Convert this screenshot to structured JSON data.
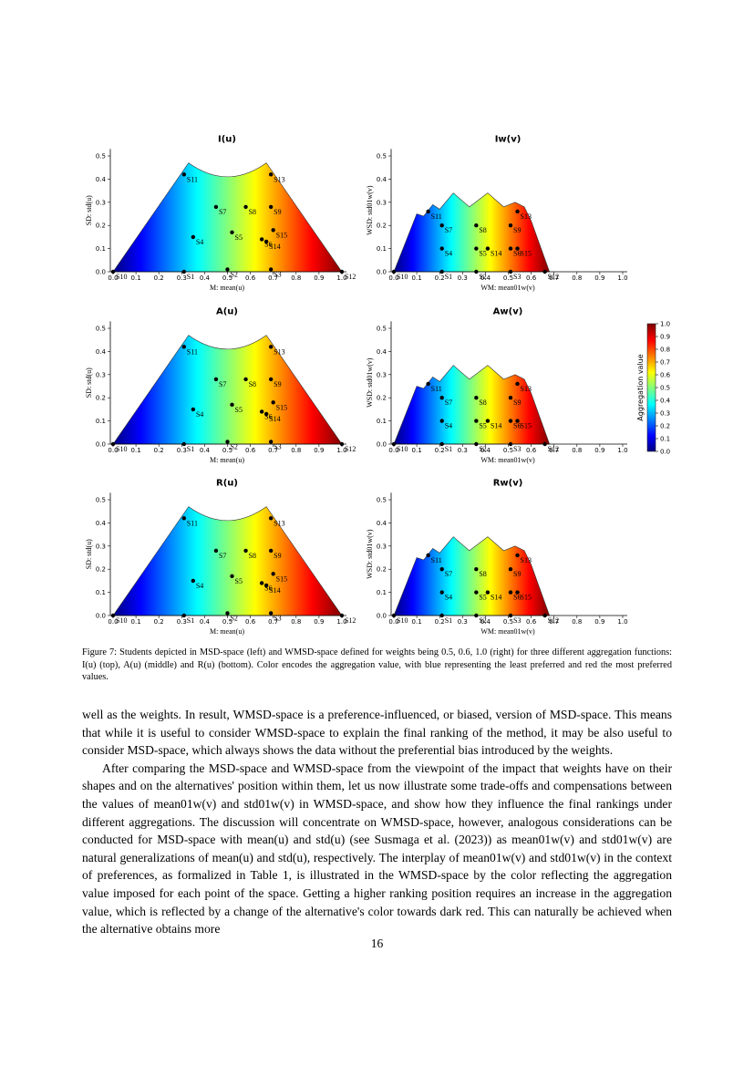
{
  "figure": {
    "rows": [
      {
        "titles": [
          "I(u)",
          "Iw(v)"
        ]
      },
      {
        "titles": [
          "A(u)",
          "Aw(v)"
        ]
      },
      {
        "titles": [
          "R(u)",
          "Rw(v)"
        ]
      }
    ],
    "columns": [
      {
        "xlabel": "M: mean(u)",
        "ylabel": "SD: std(u)",
        "xlim": [
          0,
          1.02
        ],
        "ylim": [
          0,
          0.53
        ],
        "xticks": [
          {
            "value": 0,
            "label": "0.0"
          },
          0.1,
          0.2,
          0.3,
          0.4,
          0.5,
          0.6,
          0.7,
          0.8,
          0.9,
          {
            "value": 1,
            "label": "1.0"
          }
        ],
        "yticks": [
          {
            "value": 0,
            "label": "0.0"
          },
          0.1,
          0.2,
          0.3,
          0.4,
          0.5
        ],
        "points": {
          "labels": [
            "S1",
            "S2",
            "S3",
            "S4",
            "S5",
            "S6",
            "S7",
            "S8",
            "S9",
            "S10",
            "S11",
            "S12",
            "S13",
            "S14",
            "S15"
          ],
          "x": [
            0.31,
            0.5,
            0.69,
            0.35,
            0.52,
            0.65,
            0.45,
            0.58,
            0.69,
            0.0,
            0.31,
            1.0,
            0.69,
            0.67,
            0.7
          ],
          "y": [
            0.0,
            0.01,
            0.01,
            0.15,
            0.17,
            0.14,
            0.28,
            0.28,
            0.28,
            0.0,
            0.42,
            0.0,
            0.42,
            0.13,
            0.18
          ]
        }
      },
      {
        "xlabel": "WM: mean01w(v)",
        "ylabel": "WSD: std01w(v)",
        "xlim": [
          0,
          1.02
        ],
        "ylim": [
          0,
          0.53
        ],
        "xticks": [
          {
            "value": 0,
            "label": "0.0"
          },
          0.1,
          0.2,
          0.3,
          0.4,
          0.5,
          0.6,
          0.7,
          0.8,
          0.9,
          {
            "value": 1,
            "label": "1.0"
          }
        ],
        "yticks": [
          {
            "value": 0,
            "label": "0.0"
          },
          0.1,
          0.2,
          0.3,
          0.4,
          0.5
        ],
        "points": {
          "labels": [
            "S1",
            "S2",
            "S3",
            "S4",
            "S5",
            "S6",
            "S7",
            "S8",
            "S9",
            "S10",
            "S11",
            "S12",
            "S13",
            "S14",
            "S15"
          ],
          "x": [
            0.21,
            0.36,
            0.51,
            0.21,
            0.36,
            0.51,
            0.21,
            0.36,
            0.51,
            0.0,
            0.15,
            0.66,
            0.54,
            0.41,
            0.54
          ],
          "y": [
            0.0,
            0.0,
            0.0,
            0.1,
            0.1,
            0.1,
            0.2,
            0.2,
            0.2,
            0.0,
            0.26,
            0.0,
            0.26,
            0.1,
            0.1
          ]
        }
      }
    ],
    "colorbar": {
      "label": "Aggregation value",
      "lim": [
        0,
        1
      ],
      "ticks": [
        {
          "value": 0,
          "label": "0.0"
        },
        0.1,
        0.2,
        0.3,
        0.4,
        0.5,
        0.6,
        0.7,
        0.8,
        0.9,
        {
          "value": 1,
          "label": "1.0"
        }
      ]
    },
    "caption": "Figure 7: Students depicted in MSD-space (left) and WMSD-space defined for weights being 0.5, 0.6, 1.0 (right) for three different aggregation functions: I(u) (top), A(u) (middle) and R(u) (bottom). Color encodes the aggregation value, with blue representing the least preferred and red the most preferred values."
  },
  "body": {
    "paragraphs": [
      "well as the weights. In result, WMSD-space is a preference-influenced, or biased, version of MSD-space. This means that while it is useful to consider WMSD-space to explain the final ranking of the method, it may be also useful to consider MSD-space, which always shows the data without the preferential bias introduced by the weights.",
      "After comparing the MSD-space and WMSD-space from the viewpoint of the impact that weights have on their shapes and on the alternatives' position within them, let us now illustrate some trade-offs and compensations between the values of mean01w(v) and std01w(v) in WMSD-space, and show how they influence the final rankings under different aggregations. The discussion will concentrate on WMSD-space, however, analogous considerations can be conducted for MSD-space with mean(u) and std(u) (see Susmaga et al. (2023)) as mean01w(v) and std01w(v) are natural generalizations of mean(u) and std(u), respectively. The interplay of mean01w(v) and std01w(v) in the context of preferences, as formalized in Table 1, is illustrated in the WMSD-space by the color reflecting the aggregation value imposed for each point of the space. Getting a higher ranking position requires an increase in the aggregation value, which is reflected by a change of the alternative's color towards dark red. This can naturally be achieved when the alternative obtains more"
    ]
  },
  "page_number": "16"
}
